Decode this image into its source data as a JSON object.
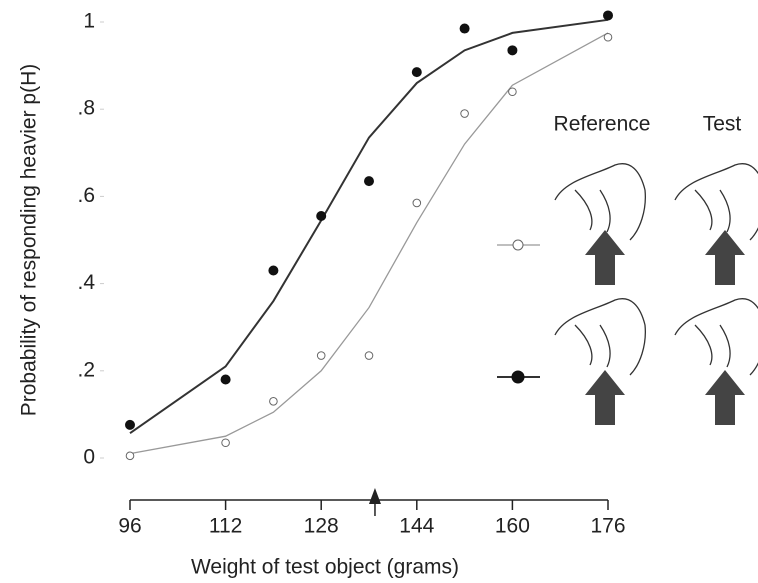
{
  "chart_data": {
    "type": "scatter",
    "x_label": "Weight of test object (grams)",
    "y_label": "Probability of responding heavier p(H)",
    "x": [
      96,
      112,
      120,
      128,
      136,
      144,
      152,
      160,
      176
    ],
    "series": [
      {
        "color": "#999999",
        "marker": "open",
        "values": [
          0.005,
          0.035,
          0.13,
          0.235,
          0.235,
          0.585,
          0.79,
          0.84,
          0.965
        ],
        "fit": [
          0.01,
          0.05,
          0.105,
          0.2,
          0.345,
          0.54,
          0.72,
          0.855,
          0.975
        ]
      },
      {
        "color": "#333333",
        "marker": "filled",
        "values": [
          0.076,
          0.18,
          0.43,
          0.555,
          0.635,
          0.885,
          0.985,
          0.935,
          1.015
        ],
        "fit": [
          0.057,
          0.21,
          0.36,
          0.545,
          0.735,
          0.86,
          0.935,
          0.975,
          1.005
        ]
      }
    ],
    "arrow_x": 137,
    "xlim": [
      96,
      176
    ],
    "xticks": [
      96,
      112,
      128,
      144,
      160,
      176
    ],
    "ylim": [
      0,
      1.03
    ],
    "yticks": [
      0,
      {
        "value": 0.2,
        "label": ".2"
      },
      {
        "value": 0.4,
        "label": ".4"
      },
      {
        "value": 0.6,
        "label": ".6"
      },
      {
        "value": 0.8,
        "label": ".8"
      },
      1
    ],
    "legend_labels": [
      "Reference",
      "Test"
    ]
  }
}
